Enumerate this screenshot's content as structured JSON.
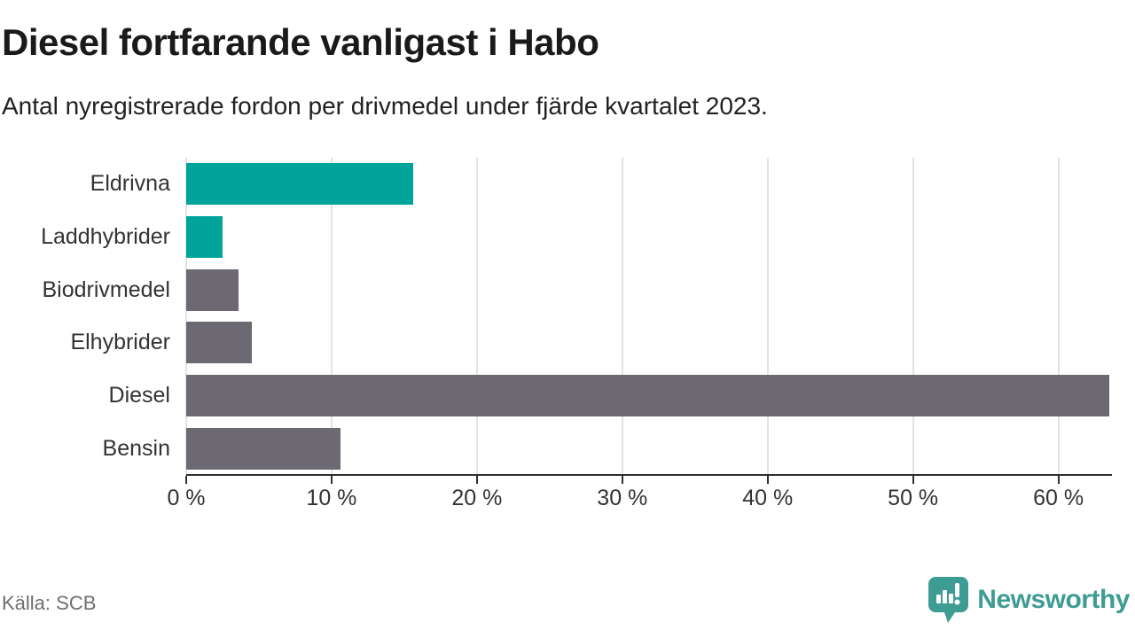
{
  "header": {
    "title": "Diesel fortfarande vanligast i Habo",
    "subtitle": "Antal nyregistrerade fordon per drivmedel under fjärde kvartalet 2023."
  },
  "chart_data": {
    "type": "bar",
    "orientation": "horizontal",
    "title": "Diesel fortfarande vanligast i Habo",
    "subtitle": "Antal nyregistrerade fordon per drivmedel under fjärde kvartalet 2023.",
    "categories": [
      "Eldrivna",
      "Laddhybrider",
      "Biodrivmedel",
      "Elhybrider",
      "Diesel",
      "Bensin"
    ],
    "values": [
      15.6,
      2.5,
      3.6,
      4.5,
      63.5,
      10.6
    ],
    "unit": "%",
    "bar_colors": [
      "#00a49b",
      "#00a49b",
      "#6c6972",
      "#6c6972",
      "#6c6972",
      "#6c6972"
    ],
    "x_ticks": [
      0,
      10,
      20,
      30,
      40,
      50,
      60
    ],
    "x_tick_labels": [
      "0 %",
      "10 %",
      "20 %",
      "30 %",
      "40 %",
      "50 %",
      "60 %"
    ],
    "xlim": [
      0,
      63.5
    ],
    "xlabel": "",
    "ylabel": "",
    "grid": true,
    "legend": false
  },
  "footer": {
    "source": "Källa: SCB",
    "brand": "Newsworthy"
  },
  "colors": {
    "accent_teal": "#00a49b",
    "neutral_gray": "#6c6972",
    "brand_teal": "#3f9c95",
    "grid": "#e3e3e3",
    "axis": "#2e2e2e"
  },
  "icons": {
    "logo": "newsworthy-speech-bubble-chart-icon"
  }
}
